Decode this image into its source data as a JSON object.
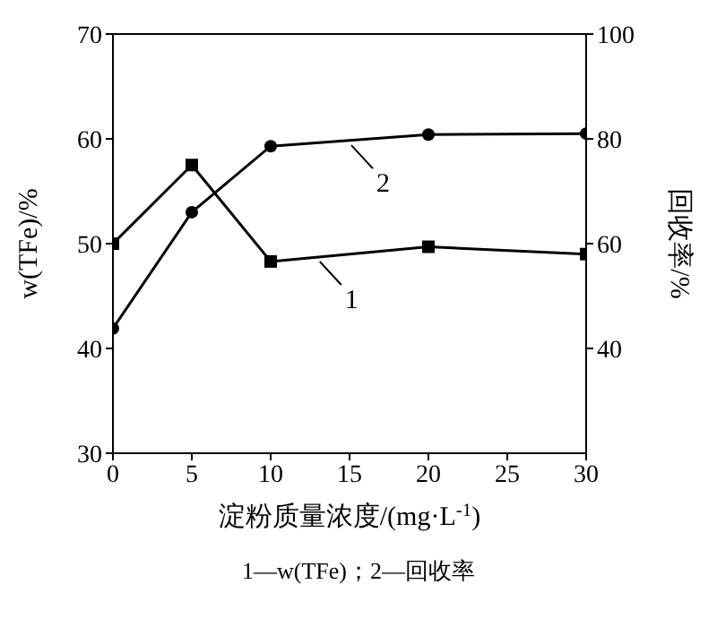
{
  "chart_data": {
    "type": "line",
    "xlabel": "淀粉质量浓度/(mg·L$^{-1}$)",
    "ylabel": "w(TFe)/%",
    "y2label": "回收率/%",
    "x": [
      0,
      5,
      10,
      20,
      30
    ],
    "series": [
      {
        "color": "#000000",
        "values": [
          50,
          57.5,
          48.3,
          49.7,
          49
        ],
        "marker": "square"
      },
      {
        "color": "#000000",
        "values": [
          43.8,
          66,
          78.6,
          80.8,
          81
        ],
        "axis": "y2",
        "marker": "circle"
      }
    ],
    "xlim": [
      0,
      30
    ],
    "xticks": [
      0,
      5,
      10,
      15,
      20,
      25,
      30
    ],
    "ylim": [
      30,
      70
    ],
    "yticks": [
      30,
      40,
      50,
      60,
      70
    ],
    "y2lim": [
      20,
      100
    ],
    "y2ticks": [
      40,
      60,
      80,
      100
    ],
    "grid": false,
    "legend": false,
    "line_style": "solid",
    "annotations": [
      {
        "text": "1",
        "x": 13,
        "y": 48.8
      },
      {
        "text": "2",
        "x": 15,
        "y": 59.9
      },
      "1—w(TFe)；2—回收率"
    ]
  }
}
